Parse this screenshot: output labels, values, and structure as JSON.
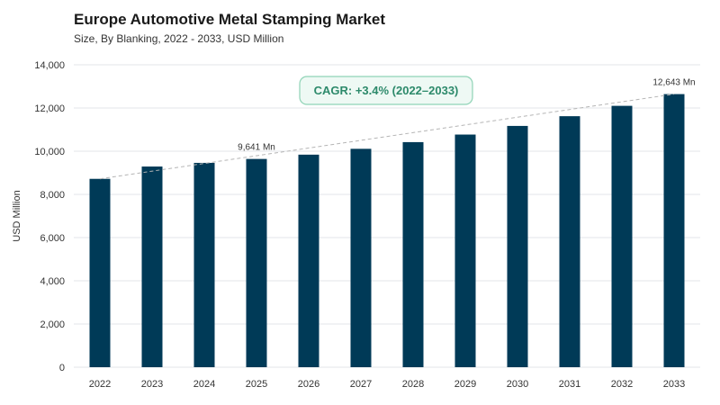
{
  "chart_data": {
    "type": "bar",
    "title": "Europe Automotive Metal Stamping Market",
    "subtitle": "Size, By Blanking, 2022 - 2033, USD Million",
    "ylabel": "USD Million",
    "xlabel": "",
    "ylim": [
      0,
      14000
    ],
    "yticks": [
      "0",
      "2,000",
      "4,000",
      "6,000",
      "8,000",
      "10,000",
      "12,000",
      "14,000"
    ],
    "grid": true,
    "categories": [
      "2022",
      "2023",
      "2024",
      "2025",
      "2026",
      "2027",
      "2028",
      "2029",
      "2030",
      "2031",
      "2032",
      "2033"
    ],
    "values": [
      8720,
      9290,
      9460,
      9641,
      9840,
      10110,
      10420,
      10770,
      11170,
      11620,
      12100,
      12643
    ],
    "data_labels": [
      {
        "index": 3,
        "text": "9,641 Mn"
      },
      {
        "index": 11,
        "text": "12,643 Mn"
      }
    ],
    "trend_line": {
      "style": "dashed",
      "from_value": 8720,
      "to_value": 12643
    },
    "annotation": {
      "text": "CAGR: +3.4% (2022–2033)"
    },
    "colors": {
      "bar": "#003a57",
      "grid": "#e3e6ea",
      "trend": "#b5b5b5",
      "cagr_border": "#8fd3b6",
      "cagr_fill": "#eef9f4",
      "cagr_text": "#2d8a6b"
    }
  }
}
